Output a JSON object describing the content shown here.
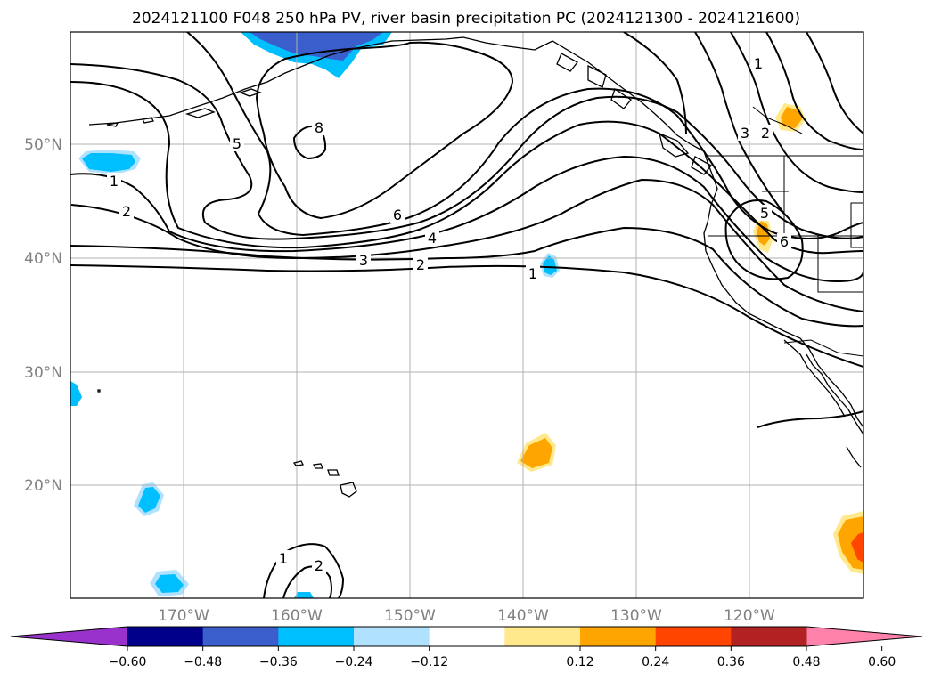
{
  "title": "2024121100 F048 250 hPa PV, river basin precipitation PC (2024121300 - 2024121600)",
  "map": {
    "lat_ticks": [
      "50°N",
      "40°N",
      "30°N",
      "20°N"
    ],
    "lon_ticks": [
      "170°W",
      "160°W",
      "150°W",
      "140°W",
      "130°W",
      "120°W"
    ],
    "grid": true
  },
  "pv_contour_labels": [
    "1",
    "2",
    "5",
    "8",
    "6",
    "4",
    "3",
    "2",
    "1",
    "1",
    "2",
    "3",
    "5",
    "6",
    "1",
    "2"
  ],
  "colorbar": {
    "ticks": [
      "−0.60",
      "−0.48",
      "−0.36",
      "−0.24",
      "−0.12",
      "0.12",
      "0.24",
      "0.36",
      "0.48",
      "0.60"
    ],
    "colors": [
      "#9932cc",
      "#00008b",
      "#3a5fcd",
      "#00bfff",
      "#b0e2ff",
      "#ffffff",
      "#ffe98c",
      "#ffa500",
      "#ff4500",
      "#b22222",
      "#ff82ab"
    ]
  }
}
